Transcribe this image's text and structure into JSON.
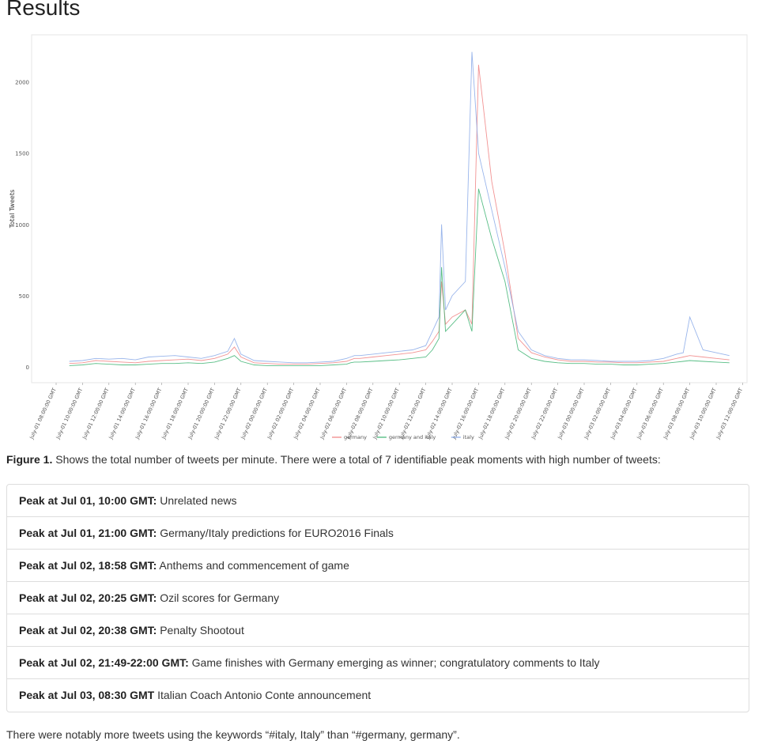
{
  "page": {
    "heading": "Results"
  },
  "chart_data": {
    "type": "line",
    "title": "",
    "xlabel": "",
    "ylabel": "Total Tweets",
    "ylim": [
      -110,
      2330
    ],
    "yticks": [
      0,
      500,
      1000,
      1500,
      2000
    ],
    "ytick_labels": [
      "0",
      "500",
      "1000",
      "1500",
      "2000"
    ],
    "x_tick_labels": [
      "July-01 08:00:00 GMT",
      "July-01 10:00:00 GMT",
      "July-01 12:00:00 GMT",
      "July-01 14:00:00 GMT",
      "July-01 16:00:00 GMT",
      "July-01 18:00:00 GMT",
      "July-01 20:00:00 GMT",
      "July-01 22:00:00 GMT",
      "July-02 00:00:00 GMT",
      "July-02 02:00:00 GMT",
      "July-02 04:00:00 GMT",
      "July-02 06:00:00 GMT",
      "July-02 08:00:00 GMT",
      "July-02 10:00:00 GMT",
      "July-02 12:00:00 GMT",
      "July-02 14:00:00 GMT",
      "July-02 16:00:00 GMT",
      "July-02 18:00:00 GMT",
      "July-02 20:00:00 GMT",
      "July-02 22:00:00 GMT",
      "July-03 00:00:00 GMT",
      "July-03 02:00:00 GMT",
      "July-03 04:00:00 GMT",
      "July-03 06:00:00 GMT",
      "July-03 08:00:00 GMT",
      "July-03 10:00:00 GMT",
      "July-03 12:00:00 GMT"
    ],
    "x_hours_unit": "hours since July-01 08:00:00 GMT",
    "grid": false,
    "legend_position": "bottom",
    "series": [
      {
        "name": "germany",
        "color": "#f08080",
        "x": [
          1,
          2,
          3,
          4,
          5,
          6,
          7,
          8,
          9,
          10,
          11,
          12,
          13,
          13.5,
          14,
          15,
          16,
          17,
          18,
          19,
          20,
          21,
          22,
          22.3,
          22.6,
          23,
          24,
          25,
          26,
          27,
          28,
          28.5,
          29,
          29.2,
          29.5,
          30,
          31,
          31.5,
          32,
          33,
          34,
          35,
          36,
          37,
          38,
          39,
          40,
          41,
          42,
          43,
          44,
          45,
          46,
          47,
          47.5,
          48,
          49,
          50,
          51
        ],
        "y": [
          25,
          30,
          45,
          40,
          35,
          30,
          40,
          45,
          50,
          55,
          45,
          60,
          90,
          140,
          70,
          30,
          25,
          20,
          20,
          20,
          25,
          30,
          40,
          50,
          60,
          60,
          70,
          80,
          90,
          100,
          120,
          180,
          250,
          600,
          300,
          350,
          400,
          300,
          2120,
          1300,
          800,
          200,
          100,
          70,
          50,
          40,
          40,
          35,
          35,
          30,
          30,
          35,
          40,
          60,
          70,
          80,
          70,
          60,
          50
        ]
      },
      {
        "name": "germany and italy",
        "color": "#3cb371",
        "x": [
          1,
          2,
          3,
          4,
          5,
          6,
          7,
          8,
          9,
          10,
          11,
          12,
          13,
          13.5,
          14,
          15,
          16,
          17,
          18,
          19,
          20,
          21,
          22,
          22.3,
          22.6,
          23,
          24,
          25,
          26,
          27,
          28,
          28.5,
          29,
          29.2,
          29.5,
          30,
          31,
          31.5,
          32,
          33,
          34,
          35,
          36,
          37,
          38,
          39,
          40,
          41,
          42,
          43,
          44,
          45,
          46,
          47,
          47.5,
          48,
          49,
          50,
          51
        ],
        "y": [
          10,
          15,
          25,
          20,
          15,
          15,
          20,
          25,
          25,
          30,
          25,
          35,
          60,
          80,
          40,
          15,
          10,
          10,
          10,
          10,
          10,
          15,
          20,
          30,
          35,
          35,
          40,
          45,
          50,
          60,
          70,
          120,
          200,
          700,
          250,
          300,
          400,
          250,
          1250,
          900,
          600,
          120,
          60,
          40,
          30,
          25,
          25,
          20,
          20,
          15,
          15,
          20,
          25,
          35,
          40,
          45,
          40,
          35,
          30
        ]
      },
      {
        "name": "italy",
        "color": "#87a8e8",
        "x": [
          1,
          2,
          3,
          4,
          5,
          6,
          7,
          8,
          9,
          10,
          11,
          12,
          13,
          13.5,
          14,
          15,
          16,
          17,
          18,
          19,
          20,
          21,
          22,
          22.3,
          22.6,
          23,
          24,
          25,
          26,
          27,
          28,
          28.5,
          29,
          29.2,
          29.5,
          30,
          31,
          31.5,
          32,
          33,
          34,
          35,
          36,
          37,
          38,
          39,
          40,
          41,
          42,
          43,
          44,
          45,
          46,
          47,
          47.5,
          48,
          49,
          50,
          51
        ],
        "y": [
          40,
          45,
          60,
          55,
          60,
          50,
          70,
          75,
          80,
          70,
          60,
          80,
          110,
          200,
          90,
          45,
          40,
          35,
          30,
          30,
          35,
          40,
          60,
          70,
          80,
          80,
          90,
          100,
          110,
          120,
          150,
          250,
          350,
          1000,
          400,
          500,
          600,
          2210,
          1500,
          1100,
          700,
          250,
          120,
          80,
          60,
          50,
          50,
          45,
          40,
          40,
          40,
          45,
          60,
          90,
          100,
          350,
          120,
          100,
          80
        ]
      }
    ]
  },
  "caption": {
    "label": "Figure 1.",
    "text": " Shows the total number of tweets per minute. There were a total of 7 identifiable peak moments with high number of tweets:"
  },
  "peaks": [
    {
      "label": "Peak at Jul 01, 10:00 GMT:",
      "desc": " Unrelated news"
    },
    {
      "label": "Peak at Jul 01, 21:00 GMT:",
      "desc": " Germany/Italy predictions for EURO2016 Finals"
    },
    {
      "label": "Peak at Jul 02, 18:58 GMT:",
      "desc": " Anthems and commencement of game"
    },
    {
      "label": "Peak at Jul 02, 20:25 GMT:",
      "desc": " Ozil scores for Germany"
    },
    {
      "label": "Peak at Jul 02, 20:38 GMT:",
      "desc": " Penalty Shootout"
    },
    {
      "label": "Peak at Jul 02, 21:49-22:00 GMT:",
      "desc": " Game finishes with Germany emerging as winner; congratulatory comments to Italy"
    },
    {
      "label": "Peak at Jul 03, 08:30 GMT",
      "desc": " Italian Coach Antonio Conte announcement"
    }
  ],
  "footer": {
    "text": "There were notably more tweets using the keywords “#italy, Italy” than “#germany, germany”."
  }
}
